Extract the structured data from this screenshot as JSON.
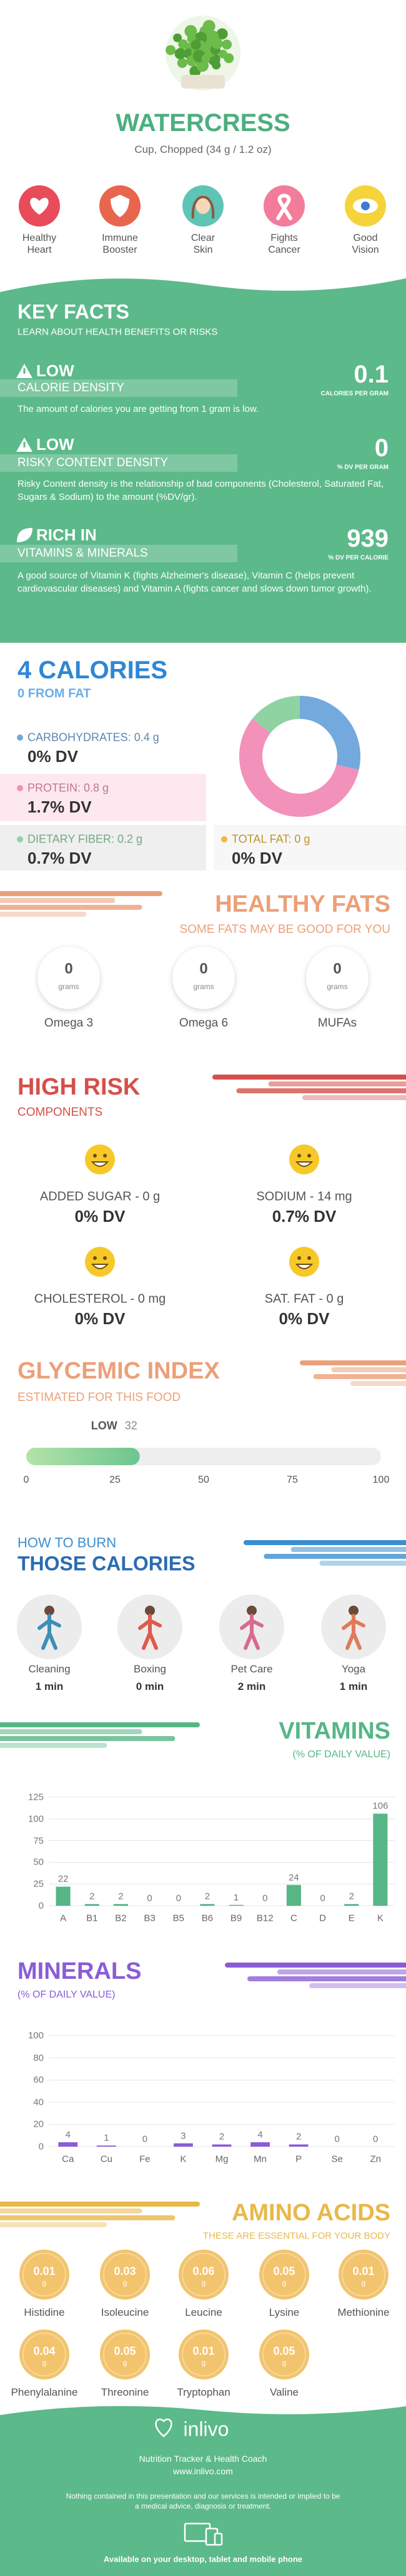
{
  "header": {
    "title": "WATERCRESS",
    "subtitle": "Cup, Chopped (34 g / 1.2 oz)"
  },
  "benefits": [
    "Healthy Heart",
    "Immune Booster",
    "Clear Skin",
    "Fights Cancer",
    "Good Vision"
  ],
  "key_facts": {
    "title": "KEY FACTS",
    "subtitle": "LEARN ABOUT HEALTH BENEFITS OR RISKS",
    "facts": [
      {
        "level": "LOW",
        "name": "CALORIE DENSITY",
        "value": "0.1",
        "unit": "CALORIES PER GRAM",
        "description": "The amount of calories you are getting from 1 gram is low."
      },
      {
        "level": "LOW",
        "name": "RISKY CONTENT DENSITY",
        "value": "0",
        "unit": "% DV PER GRAM",
        "description": "Risky Content density is the relationship of bad components (Cholesterol, Saturated Fat, Sugars & Sodium) to the amount (%DV/gr)."
      },
      {
        "level": "RICH IN",
        "name": "VITAMINS & MINERALS",
        "value": "939",
        "unit": "% DV PER CALORIE",
        "description": "A good source of Vitamin K (fights Alzheimer's disease), Vitamin C (helps prevent cardiovascular diseases) and Vitamin A (fights cancer and slows down tumor growth)."
      }
    ]
  },
  "calories": {
    "title": "4 CALORIES",
    "subtitle": "0 FROM FAT",
    "macros": [
      {
        "label": "CARBOHYDRATES: 0.4 g",
        "dv": "0% DV"
      },
      {
        "label": "PROTEIN: 0.8 g",
        "dv": "1.7% DV"
      },
      {
        "label": "DIETARY FIBER: 0.2 g",
        "dv": "0.7% DV"
      },
      {
        "label": "TOTAL FAT: 0 g",
        "dv": "0% DV"
      }
    ]
  },
  "healthy_fats": {
    "title": "HEALTHY FATS",
    "subtitle": "SOME FATS MAY BE GOOD FOR YOU",
    "items": [
      {
        "amount": "0",
        "unit": "grams",
        "name": "Omega 3"
      },
      {
        "amount": "0",
        "unit": "grams",
        "name": "Omega 6"
      },
      {
        "amount": "0",
        "unit": "grams",
        "name": "MUFAs"
      }
    ]
  },
  "high_risk": {
    "title": "HIGH RISK",
    "subtitle": "COMPONENTS",
    "items": [
      {
        "label": "ADDED SUGAR - 0 g",
        "dv": "0% DV"
      },
      {
        "label": "SODIUM - 14 mg",
        "dv": "0.7% DV"
      },
      {
        "label": "CHOLESTEROL - 0 mg",
        "dv": "0% DV"
      },
      {
        "label": "SAT. FAT - 0 g",
        "dv": "0% DV"
      }
    ]
  },
  "burn": {
    "title": "HOW TO BURN",
    "subtitle": "THOSE CALORIES",
    "activities": [
      {
        "name": "Cleaning",
        "time": "1 min"
      },
      {
        "name": "Boxing",
        "time": "0 min"
      },
      {
        "name": "Pet Care",
        "time": "2 min"
      },
      {
        "name": "Yoga",
        "time": "1 min"
      }
    ]
  },
  "amino_acids": {
    "title": "AMINO ACIDS",
    "subtitle": "THESE ARE ESSENTIAL FOR YOUR BODY",
    "items": [
      {
        "name": "Histidine",
        "amount": 0.01,
        "unit": "g"
      },
      {
        "name": "Isoleucine",
        "amount": 0.03,
        "unit": "g"
      },
      {
        "name": "Leucine",
        "amount": 0.06,
        "unit": "g"
      },
      {
        "name": "Lysine",
        "amount": 0.05,
        "unit": "g"
      },
      {
        "name": "Methionine",
        "amount": 0.01,
        "unit": "g"
      },
      {
        "name": "Phenylalanine",
        "amount": 0.04,
        "unit": "g"
      },
      {
        "name": "Threonine",
        "amount": 0.05,
        "unit": "g"
      },
      {
        "name": "Tryptophan",
        "amount": 0.01,
        "unit": "g"
      },
      {
        "name": "Valine",
        "amount": 0.05,
        "unit": "g"
      }
    ]
  },
  "footer": {
    "brand": "inlivo",
    "tagline": "Nutrition Tracker & Health Coach",
    "url": "www.inlivo.com",
    "disclaimer": "Nothing contained in this presentation and our services is intended or implied to be a medical advice, diagnosis or treatment.",
    "availability": "Available on your desktop, tablet and mobile phone"
  },
  "chart_data": [
    {
      "type": "pie",
      "donut": true,
      "values": [
        0.4,
        0.8,
        0.2,
        0
      ],
      "colors": [
        "#73a9dc",
        "#f291b9",
        "#8fd3a2",
        "#f0b93a"
      ]
    },
    {
      "type": "bar",
      "orientation": "horizontal",
      "title": "GLYCEMIC INDEX",
      "subtitle": "ESTIMATED FOR THIS FOOD",
      "categories": [
        "LOW"
      ],
      "values": [
        32
      ],
      "xlim": [
        0,
        100
      ],
      "xticks": [
        0,
        25,
        50,
        75,
        100
      ],
      "color": "#6cc58f"
    },
    {
      "type": "bar",
      "title": "VITAMINS",
      "subtitle": "(% OF DAILY VALUE)",
      "categories": [
        "A",
        "B1",
        "B2",
        "B3",
        "B5",
        "B6",
        "B9",
        "B12",
        "C",
        "D",
        "E",
        "K"
      ],
      "values": [
        22,
        2,
        2,
        0,
        0,
        2,
        1,
        0,
        24,
        0,
        2,
        106
      ],
      "ylim": [
        0,
        125
      ],
      "yticks": [
        0,
        25,
        50,
        75,
        100,
        125
      ],
      "grid": true,
      "color": "#56b685"
    },
    {
      "type": "bar",
      "title": "MINERALS",
      "subtitle": "(% OF DAILY VALUE)",
      "categories": [
        "Ca",
        "Cu",
        "Fe",
        "K",
        "Mg",
        "Mn",
        "P",
        "Se",
        "Zn"
      ],
      "values": [
        4,
        1,
        0,
        3,
        2,
        4,
        2,
        0,
        0
      ],
      "ylim": [
        0,
        100
      ],
      "yticks": [
        0,
        20,
        40,
        60,
        80,
        100
      ],
      "grid": true,
      "color": "#8a5cd6"
    }
  ]
}
